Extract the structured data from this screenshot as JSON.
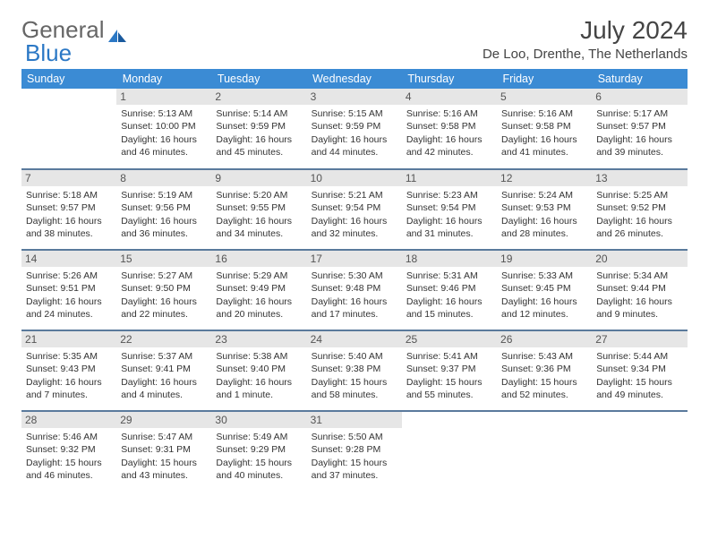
{
  "logo": {
    "part1": "General",
    "part2": "Blue"
  },
  "title": "July 2024",
  "location": "De Loo, Drenthe, The Netherlands",
  "header_bg": "#3b8bd4",
  "weekdays": [
    "Sunday",
    "Monday",
    "Tuesday",
    "Wednesday",
    "Thursday",
    "Friday",
    "Saturday"
  ],
  "weeks": [
    [
      null,
      {
        "day": "1",
        "sunrise": "Sunrise: 5:13 AM",
        "sunset": "Sunset: 10:00 PM",
        "daylight": "Daylight: 16 hours and 46 minutes."
      },
      {
        "day": "2",
        "sunrise": "Sunrise: 5:14 AM",
        "sunset": "Sunset: 9:59 PM",
        "daylight": "Daylight: 16 hours and 45 minutes."
      },
      {
        "day": "3",
        "sunrise": "Sunrise: 5:15 AM",
        "sunset": "Sunset: 9:59 PM",
        "daylight": "Daylight: 16 hours and 44 minutes."
      },
      {
        "day": "4",
        "sunrise": "Sunrise: 5:16 AM",
        "sunset": "Sunset: 9:58 PM",
        "daylight": "Daylight: 16 hours and 42 minutes."
      },
      {
        "day": "5",
        "sunrise": "Sunrise: 5:16 AM",
        "sunset": "Sunset: 9:58 PM",
        "daylight": "Daylight: 16 hours and 41 minutes."
      },
      {
        "day": "6",
        "sunrise": "Sunrise: 5:17 AM",
        "sunset": "Sunset: 9:57 PM",
        "daylight": "Daylight: 16 hours and 39 minutes."
      }
    ],
    [
      {
        "day": "7",
        "sunrise": "Sunrise: 5:18 AM",
        "sunset": "Sunset: 9:57 PM",
        "daylight": "Daylight: 16 hours and 38 minutes."
      },
      {
        "day": "8",
        "sunrise": "Sunrise: 5:19 AM",
        "sunset": "Sunset: 9:56 PM",
        "daylight": "Daylight: 16 hours and 36 minutes."
      },
      {
        "day": "9",
        "sunrise": "Sunrise: 5:20 AM",
        "sunset": "Sunset: 9:55 PM",
        "daylight": "Daylight: 16 hours and 34 minutes."
      },
      {
        "day": "10",
        "sunrise": "Sunrise: 5:21 AM",
        "sunset": "Sunset: 9:54 PM",
        "daylight": "Daylight: 16 hours and 32 minutes."
      },
      {
        "day": "11",
        "sunrise": "Sunrise: 5:23 AM",
        "sunset": "Sunset: 9:54 PM",
        "daylight": "Daylight: 16 hours and 31 minutes."
      },
      {
        "day": "12",
        "sunrise": "Sunrise: 5:24 AM",
        "sunset": "Sunset: 9:53 PM",
        "daylight": "Daylight: 16 hours and 28 minutes."
      },
      {
        "day": "13",
        "sunrise": "Sunrise: 5:25 AM",
        "sunset": "Sunset: 9:52 PM",
        "daylight": "Daylight: 16 hours and 26 minutes."
      }
    ],
    [
      {
        "day": "14",
        "sunrise": "Sunrise: 5:26 AM",
        "sunset": "Sunset: 9:51 PM",
        "daylight": "Daylight: 16 hours and 24 minutes."
      },
      {
        "day": "15",
        "sunrise": "Sunrise: 5:27 AM",
        "sunset": "Sunset: 9:50 PM",
        "daylight": "Daylight: 16 hours and 22 minutes."
      },
      {
        "day": "16",
        "sunrise": "Sunrise: 5:29 AM",
        "sunset": "Sunset: 9:49 PM",
        "daylight": "Daylight: 16 hours and 20 minutes."
      },
      {
        "day": "17",
        "sunrise": "Sunrise: 5:30 AM",
        "sunset": "Sunset: 9:48 PM",
        "daylight": "Daylight: 16 hours and 17 minutes."
      },
      {
        "day": "18",
        "sunrise": "Sunrise: 5:31 AM",
        "sunset": "Sunset: 9:46 PM",
        "daylight": "Daylight: 16 hours and 15 minutes."
      },
      {
        "day": "19",
        "sunrise": "Sunrise: 5:33 AM",
        "sunset": "Sunset: 9:45 PM",
        "daylight": "Daylight: 16 hours and 12 minutes."
      },
      {
        "day": "20",
        "sunrise": "Sunrise: 5:34 AM",
        "sunset": "Sunset: 9:44 PM",
        "daylight": "Daylight: 16 hours and 9 minutes."
      }
    ],
    [
      {
        "day": "21",
        "sunrise": "Sunrise: 5:35 AM",
        "sunset": "Sunset: 9:43 PM",
        "daylight": "Daylight: 16 hours and 7 minutes."
      },
      {
        "day": "22",
        "sunrise": "Sunrise: 5:37 AM",
        "sunset": "Sunset: 9:41 PM",
        "daylight": "Daylight: 16 hours and 4 minutes."
      },
      {
        "day": "23",
        "sunrise": "Sunrise: 5:38 AM",
        "sunset": "Sunset: 9:40 PM",
        "daylight": "Daylight: 16 hours and 1 minute."
      },
      {
        "day": "24",
        "sunrise": "Sunrise: 5:40 AM",
        "sunset": "Sunset: 9:38 PM",
        "daylight": "Daylight: 15 hours and 58 minutes."
      },
      {
        "day": "25",
        "sunrise": "Sunrise: 5:41 AM",
        "sunset": "Sunset: 9:37 PM",
        "daylight": "Daylight: 15 hours and 55 minutes."
      },
      {
        "day": "26",
        "sunrise": "Sunrise: 5:43 AM",
        "sunset": "Sunset: 9:36 PM",
        "daylight": "Daylight: 15 hours and 52 minutes."
      },
      {
        "day": "27",
        "sunrise": "Sunrise: 5:44 AM",
        "sunset": "Sunset: 9:34 PM",
        "daylight": "Daylight: 15 hours and 49 minutes."
      }
    ],
    [
      {
        "day": "28",
        "sunrise": "Sunrise: 5:46 AM",
        "sunset": "Sunset: 9:32 PM",
        "daylight": "Daylight: 15 hours and 46 minutes."
      },
      {
        "day": "29",
        "sunrise": "Sunrise: 5:47 AM",
        "sunset": "Sunset: 9:31 PM",
        "daylight": "Daylight: 15 hours and 43 minutes."
      },
      {
        "day": "30",
        "sunrise": "Sunrise: 5:49 AM",
        "sunset": "Sunset: 9:29 PM",
        "daylight": "Daylight: 15 hours and 40 minutes."
      },
      {
        "day": "31",
        "sunrise": "Sunrise: 5:50 AM",
        "sunset": "Sunset: 9:28 PM",
        "daylight": "Daylight: 15 hours and 37 minutes."
      },
      null,
      null,
      null
    ]
  ]
}
